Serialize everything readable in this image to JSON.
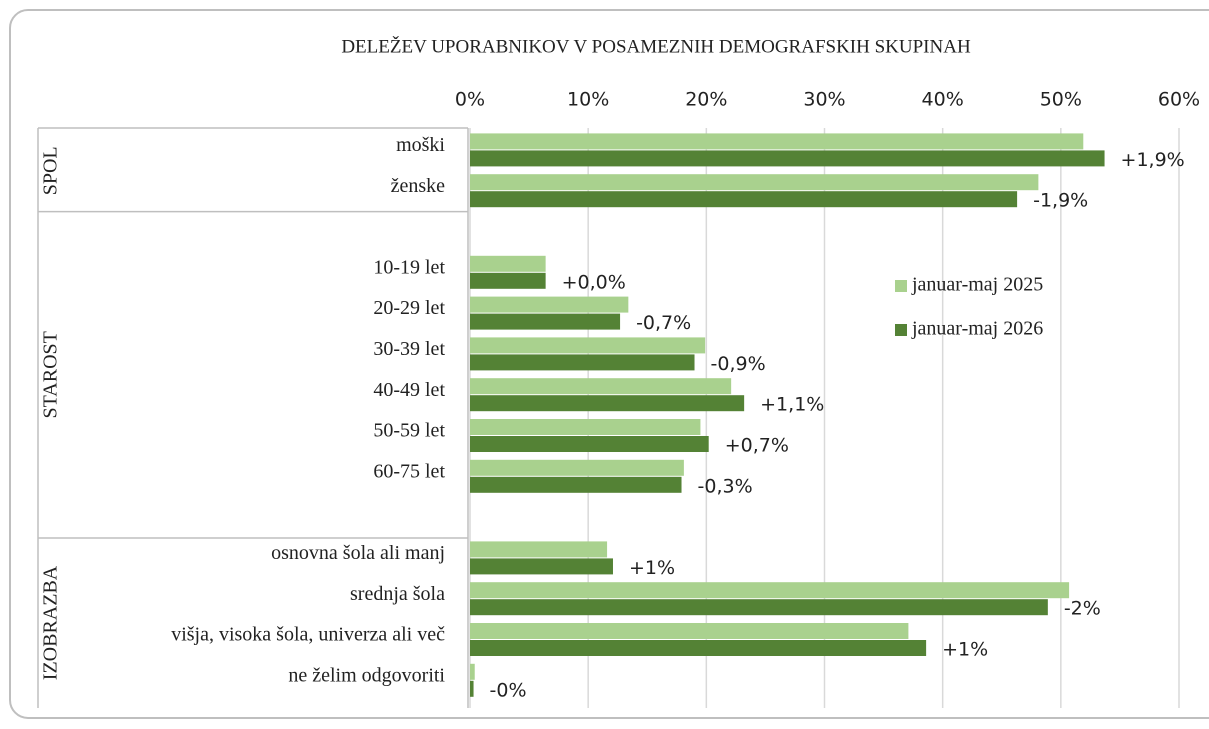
{
  "chart_data": {
    "type": "bar",
    "orientation": "horizontal",
    "title": "DELEŽEV UPORABNIKOV V POSAMEZNIH DEMOGRAFSKIH SKUPINAH",
    "groups": [
      {
        "label": "SPOL",
        "categories": [
          "moški",
          "ženske"
        ]
      },
      {
        "label": "STAROST",
        "categories": [
          "10-19 let",
          "20-29 let",
          "30-39 let",
          "40-49 let",
          "50-59 let",
          "60-75 let"
        ]
      },
      {
        "label": "IZOBRAZBA",
        "categories": [
          "osnovna šola ali manj",
          "srednja šola",
          "višja, visoka šola, univerza ali več",
          "ne želim odgovoriti"
        ]
      }
    ],
    "series": [
      {
        "name": "januar-maj 2025",
        "color": "#a9d18e",
        "values": [
          51.9,
          48.1,
          6.4,
          13.4,
          19.9,
          22.1,
          19.5,
          18.1,
          11.6,
          50.7,
          37.1,
          0.4
        ]
      },
      {
        "name": "januar-maj 2026",
        "color": "#548235",
        "values": [
          53.7,
          46.3,
          6.4,
          12.7,
          19.0,
          23.2,
          20.2,
          17.9,
          12.1,
          48.9,
          38.6,
          0.3
        ]
      }
    ],
    "change_labels": [
      "+1,9%",
      "-1,9%",
      "+0,0%",
      "-0,7%",
      "-0,9%",
      "+1,1%",
      "+0,7%",
      "-0,3%",
      "+1%",
      "-2%",
      "+1%",
      "-0%"
    ],
    "xlim": [
      0,
      60
    ],
    "xticks": [
      {
        "value": 0,
        "label": "0%"
      },
      {
        "value": 10,
        "label": "10%"
      },
      {
        "value": 20,
        "label": "20%"
      },
      {
        "value": 30,
        "label": "30%"
      },
      {
        "value": 40,
        "label": "40%"
      },
      {
        "value": 50,
        "label": "50%"
      },
      {
        "value": 60,
        "label": "60%"
      }
    ],
    "grid": true
  }
}
